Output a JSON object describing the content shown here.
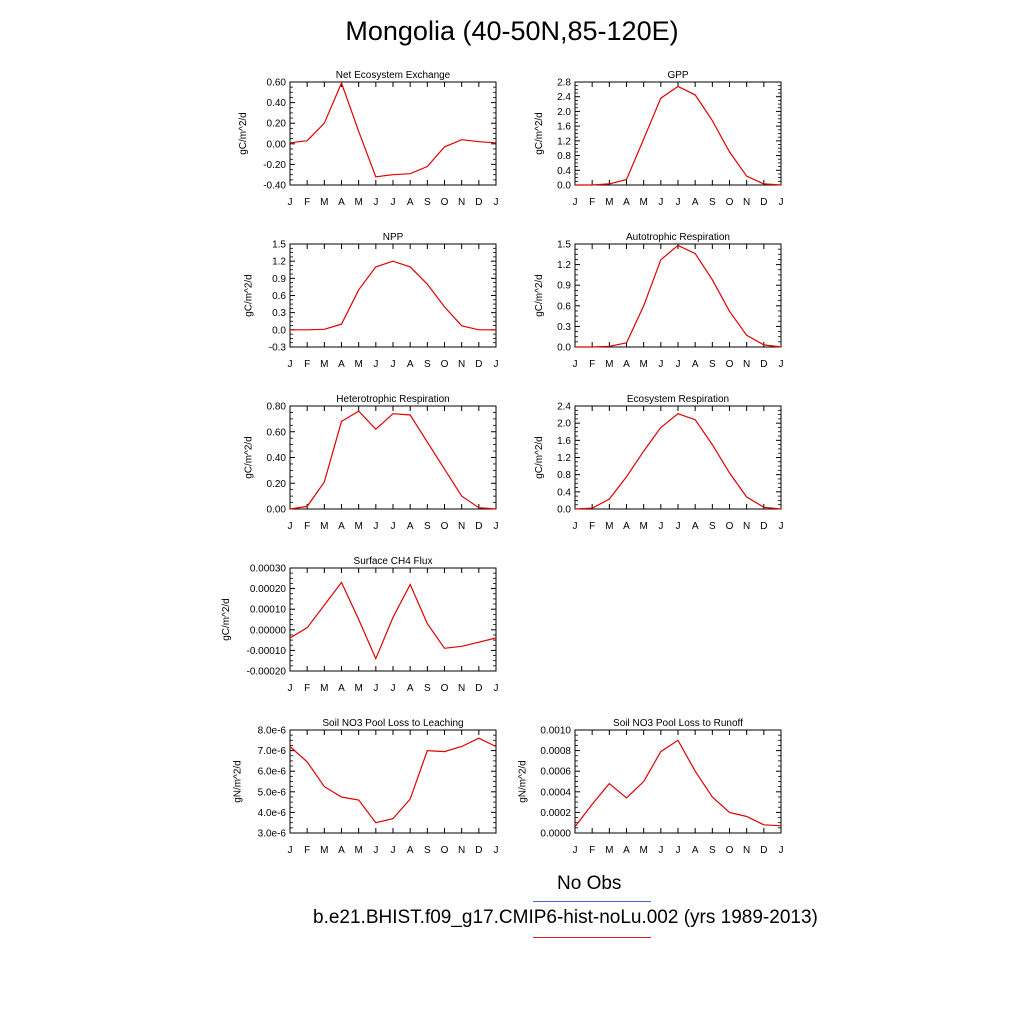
{
  "title": "Mongolia (40-50N,85-120E)",
  "legend": {
    "obs_label": "No Obs",
    "obs_color": "#4a5fe0",
    "model_label": "b.e21.BHIST.f09_g17.CMIP6-hist-noLu.002 (yrs 1989-2013)",
    "model_color": "#e02020"
  },
  "series_color": "#e00000",
  "chart_data": [
    {
      "type": "line",
      "title": "Net Ecosystem Exchange",
      "ylabel": "gC/m^2/d",
      "categories": [
        "J",
        "F",
        "M",
        "A",
        "M",
        "J",
        "J",
        "A",
        "S",
        "O",
        "N",
        "D",
        "J"
      ],
      "yticks": [
        "0.60",
        "0.40",
        "0.20",
        "0.00",
        "-0.20",
        "-0.40"
      ],
      "ytick_values": [
        0.6,
        0.4,
        0.2,
        0.0,
        -0.2,
        -0.4
      ],
      "ylim": [
        -0.4,
        0.6
      ],
      "values": [
        0.01,
        0.03,
        0.2,
        0.59,
        0.12,
        -0.32,
        -0.3,
        -0.29,
        -0.22,
        -0.03,
        0.04,
        0.02,
        0.01
      ]
    },
    {
      "type": "line",
      "title": "GPP",
      "ylabel": "gC/m^2/d",
      "categories": [
        "J",
        "F",
        "M",
        "A",
        "M",
        "J",
        "J",
        "A",
        "S",
        "O",
        "N",
        "D",
        "J"
      ],
      "yticks": [
        "2.8",
        "2.4",
        "2.0",
        "1.6",
        "1.2",
        "0.8",
        "0.4",
        "0.0"
      ],
      "ytick_values": [
        2.8,
        2.4,
        2.0,
        1.6,
        1.2,
        0.8,
        0.4,
        0.0
      ],
      "ylim": [
        0.0,
        2.8
      ],
      "values": [
        0.0,
        0.0,
        0.03,
        0.15,
        1.25,
        2.36,
        2.68,
        2.45,
        1.75,
        0.9,
        0.24,
        0.03,
        0.0
      ]
    },
    {
      "type": "line",
      "title": "NPP",
      "ylabel": "gC/m^2/d",
      "categories": [
        "J",
        "F",
        "M",
        "A",
        "M",
        "J",
        "J",
        "A",
        "S",
        "O",
        "N",
        "D",
        "J"
      ],
      "yticks": [
        "1.5",
        "1.2",
        "0.9",
        "0.6",
        "0.3",
        "0.0",
        "-0.3"
      ],
      "ytick_values": [
        1.5,
        1.2,
        0.9,
        0.6,
        0.3,
        0.0,
        -0.3
      ],
      "ylim": [
        -0.3,
        1.5
      ],
      "values": [
        0.0,
        0.0,
        0.01,
        0.1,
        0.7,
        1.1,
        1.2,
        1.1,
        0.8,
        0.4,
        0.07,
        0.0,
        0.0
      ]
    },
    {
      "type": "line",
      "title": "Autotrophic Respiration",
      "ylabel": "gC/m^2/d",
      "categories": [
        "J",
        "F",
        "M",
        "A",
        "M",
        "J",
        "J",
        "A",
        "S",
        "O",
        "N",
        "D",
        "J"
      ],
      "yticks": [
        "1.5",
        "1.2",
        "0.9",
        "0.6",
        "0.3",
        "0.0"
      ],
      "ytick_values": [
        1.5,
        1.2,
        0.9,
        0.6,
        0.3,
        0.0
      ],
      "ylim": [
        0.0,
        1.5
      ],
      "values": [
        0.0,
        0.0,
        0.01,
        0.06,
        0.6,
        1.27,
        1.48,
        1.36,
        0.98,
        0.52,
        0.17,
        0.03,
        0.0
      ]
    },
    {
      "type": "line",
      "title": "Heterotrophic Respiration",
      "ylabel": "gC/m^2/d",
      "categories": [
        "J",
        "F",
        "M",
        "A",
        "M",
        "J",
        "J",
        "A",
        "S",
        "O",
        "N",
        "D",
        "J"
      ],
      "yticks": [
        "0.80",
        "0.60",
        "0.40",
        "0.20",
        "0.00"
      ],
      "ytick_values": [
        0.8,
        0.6,
        0.4,
        0.2,
        0.0
      ],
      "ylim": [
        0.0,
        0.8
      ],
      "values": [
        0.0,
        0.02,
        0.21,
        0.68,
        0.76,
        0.62,
        0.74,
        0.73,
        0.52,
        0.31,
        0.1,
        0.01,
        0.0
      ]
    },
    {
      "type": "line",
      "title": "Ecosystem Respiration",
      "ylabel": "gC/m^2/d",
      "categories": [
        "J",
        "F",
        "M",
        "A",
        "M",
        "J",
        "J",
        "A",
        "S",
        "O",
        "N",
        "D",
        "J"
      ],
      "yticks": [
        "2.4",
        "2.0",
        "1.6",
        "1.2",
        "0.8",
        "0.4",
        "0.0"
      ],
      "ytick_values": [
        2.4,
        2.0,
        1.6,
        1.2,
        0.8,
        0.4,
        0.0
      ],
      "ylim": [
        0.0,
        2.4
      ],
      "values": [
        0.0,
        0.02,
        0.23,
        0.75,
        1.35,
        1.9,
        2.22,
        2.08,
        1.5,
        0.84,
        0.28,
        0.04,
        0.0
      ]
    },
    {
      "type": "line",
      "title": "Surface CH4 Flux",
      "ylabel": "gC/m^2/d",
      "categories": [
        "J",
        "F",
        "M",
        "A",
        "M",
        "J",
        "J",
        "A",
        "S",
        "O",
        "N",
        "D",
        "J"
      ],
      "yticks": [
        "0.00030",
        "0.00020",
        "0.00010",
        "0.00000",
        "-0.00010",
        "-0.00020"
      ],
      "ytick_values": [
        0.0003,
        0.0002,
        0.0001,
        0.0,
        -0.0001,
        -0.0002
      ],
      "ylim": [
        -0.0002,
        0.0003
      ],
      "values": [
        -4e-05,
        1e-05,
        0.00012,
        0.00023,
        5e-05,
        -0.00014,
        6e-05,
        0.00022,
        3e-05,
        -9e-05,
        -8e-05,
        -6e-05,
        -4e-05
      ]
    },
    {
      "type": "line",
      "title": "Soil NO3 Pool Loss to Leaching",
      "ylabel": "gN/m^2/d",
      "categories": [
        "J",
        "F",
        "M",
        "A",
        "M",
        "J",
        "J",
        "A",
        "S",
        "O",
        "N",
        "D",
        "J"
      ],
      "yticks": [
        "8.0e-6",
        "7.0e-6",
        "6.0e-6",
        "5.0e-6",
        "4.0e-6",
        "3.0e-6"
      ],
      "ytick_values": [
        8e-06,
        7e-06,
        6e-06,
        5e-06,
        4e-06,
        3e-06
      ],
      "ylim": [
        3e-06,
        8e-06
      ],
      "values": [
        7.2e-06,
        6.45e-06,
        5.25e-06,
        4.75e-06,
        4.6e-06,
        3.5e-06,
        3.7e-06,
        4.65e-06,
        7e-06,
        6.95e-06,
        7.2e-06,
        7.6e-06,
        7.2e-06
      ]
    },
    {
      "type": "line",
      "title": "Soil NO3 Pool Loss to Runoff",
      "ylabel": "gN/m^2/d",
      "categories": [
        "J",
        "F",
        "M",
        "A",
        "M",
        "J",
        "J",
        "A",
        "S",
        "O",
        "N",
        "D",
        "J"
      ],
      "yticks": [
        "0.0010",
        "0.0008",
        "0.0006",
        "0.0004",
        "0.0002",
        "0.0000"
      ],
      "ytick_values": [
        0.001,
        0.0008,
        0.0006,
        0.0004,
        0.0002,
        0.0
      ],
      "ylim": [
        0.0,
        0.001
      ],
      "values": [
        6e-05,
        0.00028,
        0.00048,
        0.00034,
        0.0005,
        0.00079,
        0.0009,
        0.0006,
        0.00035,
        0.0002,
        0.00016,
        8e-05,
        7e-05
      ]
    }
  ]
}
